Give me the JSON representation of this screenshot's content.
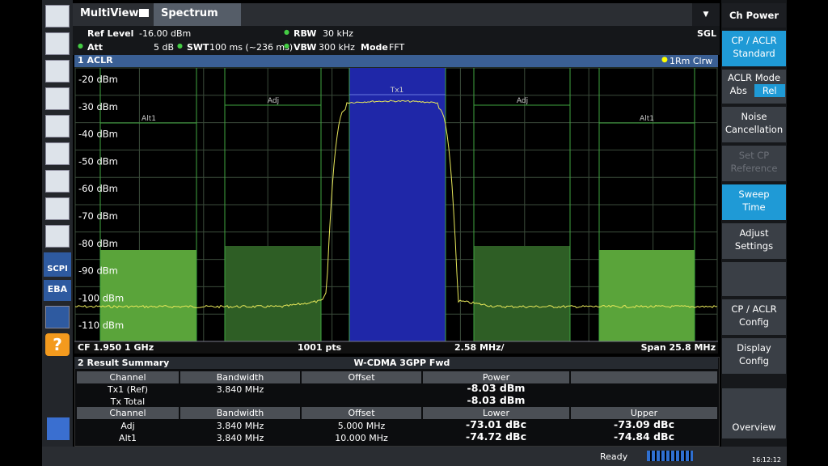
{
  "tabs": {
    "multiview": "MultiView",
    "spectrum": "Spectrum"
  },
  "header": {
    "ref_level_label": "Ref Level",
    "ref_level": "-16.00 dBm",
    "att_label": "Att",
    "att": "5 dB",
    "swt_label": "SWT",
    "swt": "100 ms (~236 ms)",
    "rbw_label": "RBW",
    "rbw": "30 kHz",
    "vbw_label": "VBW",
    "vbw": "300 kHz",
    "mode_label": "Mode",
    "mode": "FFT",
    "sgl": "SGL"
  },
  "diagram": {
    "title": "1 ACLR",
    "trace_info": "1Rm Clrw",
    "y_labels": [
      "-20 dBm",
      "-30 dBm",
      "-40 dBm",
      "-50 dBm",
      "-60 dBm",
      "-70 dBm",
      "-80 dBm",
      "-90 dBm",
      "-100 dBm",
      "-110 dBm"
    ],
    "channel_labels": {
      "tx1": "Tx1",
      "adj": "Adj",
      "alt1": "Alt1"
    },
    "footer": {
      "cf": "CF 1.950 1 GHz",
      "pts": "1001 pts",
      "div": "2.58 MHz/",
      "span": "Span 25.8 MHz"
    }
  },
  "results": {
    "title": "2 Result Summary",
    "standard": "W-CDMA 3GPP Fwd",
    "header1": [
      "Channel",
      "Bandwidth",
      "Offset",
      "Power"
    ],
    "tx_rows": [
      {
        "channel": "Tx1 (Ref)",
        "bandwidth": "3.840 MHz",
        "power": "-8.03 dBm"
      },
      {
        "channel": "Tx Total",
        "power": "-8.03 dBm"
      }
    ],
    "header2": [
      "Channel",
      "Bandwidth",
      "Offset",
      "Lower",
      "Upper"
    ],
    "adj_rows": [
      {
        "channel": "Adj",
        "bandwidth": "3.840 MHz",
        "offset": "5.000 MHz",
        "lower": "-73.01 dBc",
        "upper": "-73.09 dBc"
      },
      {
        "channel": "Alt1",
        "bandwidth": "3.840 MHz",
        "offset": "10.000 MHz",
        "lower": "-74.72 dBc",
        "upper": "-74.84 dBc"
      }
    ]
  },
  "softkeys": {
    "title": "Ch Power",
    "items": [
      {
        "lines": [
          "CP / ACLR",
          "Standard"
        ]
      },
      {
        "lines": [
          "ACLR Mode"
        ],
        "options": [
          "Abs",
          "Rel"
        ]
      },
      {
        "lines": [
          "Noise",
          "Cancellation"
        ]
      },
      {
        "lines": [
          "Set CP",
          "Reference"
        ]
      },
      {
        "lines": [
          "Sweep",
          "Time"
        ]
      },
      {
        "lines": [
          "Adjust",
          "Settings"
        ]
      },
      {
        "lines": [
          "CP / ACLR",
          "Config"
        ]
      },
      {
        "lines": [
          "Display",
          "Config"
        ]
      },
      {
        "lines": [
          "Overview"
        ]
      }
    ]
  },
  "toolbar": {
    "scpi": "SCPI",
    "eba": "EBA"
  },
  "status": {
    "state": "Ready",
    "time": "16:12:12"
  }
}
